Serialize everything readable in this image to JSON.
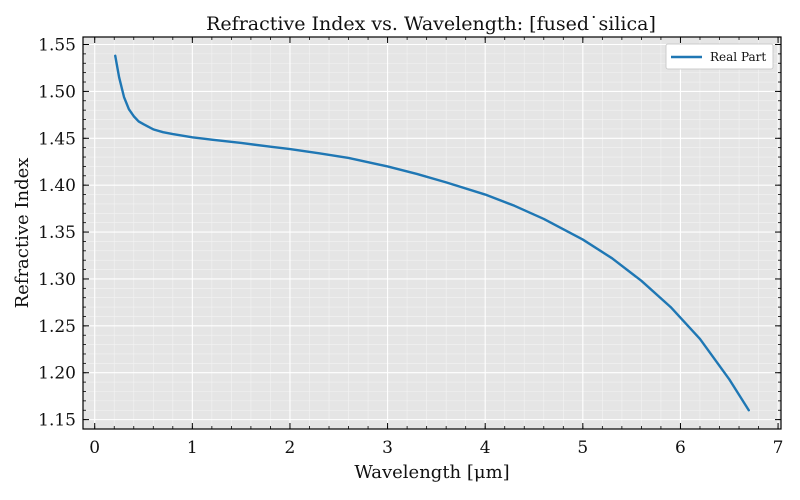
{
  "chart_data": {
    "type": "line",
    "title": "Refractive Index vs. Wavelength: [fused˙silica]",
    "xlabel": "Wavelength [μm]",
    "ylabel": "Refractive Index",
    "xlim": [
      -0.12,
      7.03
    ],
    "ylim": [
      1.14,
      1.558
    ],
    "xticks": [
      0,
      1,
      2,
      3,
      4,
      5,
      6,
      7
    ],
    "yticks": [
      1.15,
      1.2,
      1.25,
      1.3,
      1.35,
      1.4,
      1.45,
      1.5,
      1.55
    ],
    "ytick_labels": [
      "1.15",
      "1.20",
      "1.25",
      "1.30",
      "1.35",
      "1.40",
      "1.45",
      "1.50",
      "1.55"
    ],
    "grid": true,
    "legend_position": "top-right",
    "series": [
      {
        "name": "Real Part",
        "color": "#1f77b4",
        "x": [
          0.21,
          0.25,
          0.3,
          0.35,
          0.4,
          0.45,
          0.5,
          0.6,
          0.7,
          0.8,
          1.0,
          1.2,
          1.5,
          1.8,
          2.0,
          2.3,
          2.6,
          3.0,
          3.3,
          3.6,
          4.0,
          4.3,
          4.6,
          5.0,
          5.3,
          5.6,
          5.9,
          6.2,
          6.5,
          6.7
        ],
        "y": [
          1.538,
          1.515,
          1.494,
          1.481,
          1.4735,
          1.468,
          1.465,
          1.4595,
          1.4565,
          1.4545,
          1.451,
          1.4485,
          1.445,
          1.441,
          1.4385,
          1.434,
          1.429,
          1.42,
          1.412,
          1.403,
          1.39,
          1.378,
          1.364,
          1.342,
          1.322,
          1.298,
          1.27,
          1.236,
          1.193,
          1.16
        ]
      }
    ]
  }
}
